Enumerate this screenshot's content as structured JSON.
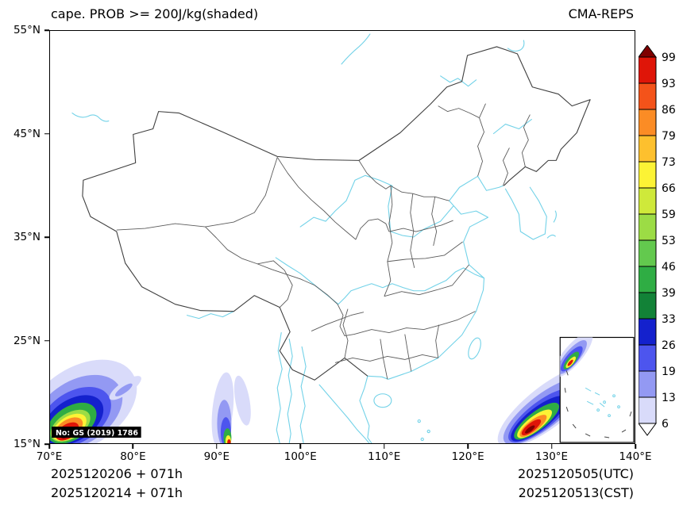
{
  "header": {
    "title": "cape. PROB >= 200J/kg(shaded)",
    "model": "CMA-REPS"
  },
  "axes": {
    "x_ticks": [
      "70°E",
      "80°E",
      "90°E",
      "100°E",
      "110°E",
      "120°E",
      "130°E",
      "140°E"
    ],
    "y_ticks": [
      "55°N",
      "45°N",
      "35°N",
      "25°N",
      "15°N"
    ]
  },
  "colorbar": {
    "levels": [
      "99",
      "93",
      "86",
      "79",
      "73",
      "66",
      "59",
      "53",
      "46",
      "39",
      "33",
      "26",
      "19",
      "13",
      "6"
    ],
    "colors": [
      "#7f0000",
      "#df1508",
      "#f4531a",
      "#fb8c25",
      "#fdc02e",
      "#fcf335",
      "#cfe93a",
      "#9cdc45",
      "#63c94e",
      "#2fad44",
      "#128237",
      "#1421cd",
      "#4d55ee",
      "#9399f3",
      "#d9dbfa",
      "#ffffff"
    ]
  },
  "map": {
    "license_note": "No: GS (2019) 1786"
  },
  "footer": {
    "init_lines": [
      "2025120206 + 071h",
      "2025120214 + 071h"
    ],
    "valid_lines": [
      "2025120505(UTC)",
      "2025120513(CST)"
    ]
  }
}
